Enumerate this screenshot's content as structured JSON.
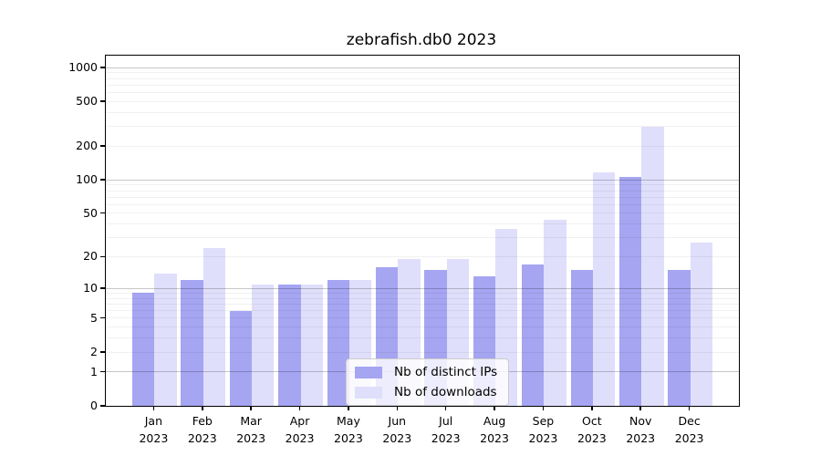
{
  "title": "zebrafish.db0 2023",
  "chart_data": {
    "type": "bar",
    "title": "zebrafish.db0 2023",
    "categories": [
      "Jan 2023",
      "Feb 2023",
      "Mar 2023",
      "Apr 2023",
      "May 2023",
      "Jun 2023",
      "Jul 2023",
      "Aug 2023",
      "Sep 2023",
      "Oct 2023",
      "Nov 2023",
      "Dec 2023"
    ],
    "series": [
      {
        "name": "Nb of distinct IPs",
        "color": "#a5a5f2",
        "values": [
          9,
          12,
          6,
          11,
          12,
          16,
          15,
          13,
          17,
          15,
          106,
          15
        ]
      },
      {
        "name": "Nb of downloads",
        "color": "#dfdffb",
        "values": [
          14,
          24,
          11,
          11,
          12,
          19,
          19,
          36,
          44,
          116,
          300,
          27
        ]
      }
    ],
    "yscale": "log1p",
    "yticks": [
      0,
      1,
      2,
      5,
      10,
      20,
      50,
      100,
      200,
      500,
      1000
    ],
    "ylim": [
      0,
      1278
    ],
    "xlabel": "",
    "ylabel": "",
    "grid": "horizontal major+minor",
    "legend_position": "lower center",
    "gridline_minor_values": [
      2,
      3,
      4,
      5,
      6,
      7,
      8,
      9,
      20,
      30,
      40,
      50,
      60,
      70,
      80,
      90,
      200,
      300,
      400,
      500,
      600,
      700,
      800,
      900
    ],
    "gridline_major_values": [
      1,
      10,
      100,
      1000
    ]
  }
}
